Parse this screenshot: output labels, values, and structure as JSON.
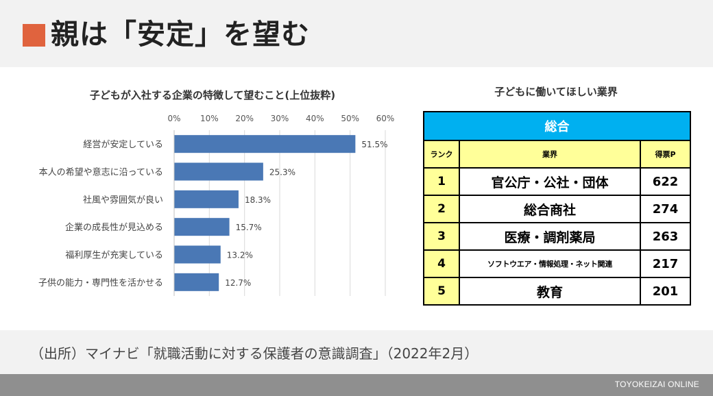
{
  "header": {
    "title": "親は「安定」を望む",
    "accent_color": "#e0633e"
  },
  "chart_data": {
    "type": "bar",
    "orientation": "horizontal",
    "title": "子どもが入社する企業の特徴して望むこと(上位抜粋)",
    "categories": [
      "経営が安定している",
      "本人の希望や意志に沿っている",
      "社風や雰囲気が良い",
      "企業の成長性が見込める",
      "福利厚生が充実している",
      "子供の能力・専門性を活かせる"
    ],
    "values": [
      51.5,
      25.3,
      18.3,
      15.7,
      13.2,
      12.7
    ],
    "data_labels": [
      "51.5%",
      "25.3%",
      "18.3%",
      "15.7%",
      "13.2%",
      "12.7%"
    ],
    "xlim": [
      0,
      60
    ],
    "ticks": [
      0,
      10,
      20,
      30,
      40,
      50,
      60
    ],
    "tick_labels": [
      "0%",
      "10%",
      "20%",
      "30%",
      "40%",
      "50%",
      "60%"
    ],
    "axis_position": "top",
    "grid": true,
    "bar_color": "#4a78b5"
  },
  "table": {
    "title": "子どもに働いてほしい業界",
    "banner": "総合",
    "headers": [
      "ランク",
      "業界",
      "得票P"
    ],
    "rows": [
      {
        "rank": "1",
        "industry": "官公庁・公社・団体",
        "points": "622"
      },
      {
        "rank": "2",
        "industry": "総合商社",
        "points": "274"
      },
      {
        "rank": "3",
        "industry": "医療・調剤薬局",
        "points": "263"
      },
      {
        "rank": "4",
        "industry": "ソフトウエア・情報処理・ネット関連",
        "points": "217"
      },
      {
        "rank": "5",
        "industry": "教育",
        "points": "201"
      }
    ],
    "banner_color": "#00b0f0",
    "header_color": "#ffff99"
  },
  "footer": {
    "source": "（出所）マイナビ「就職活動に対する保護者の意識調査」（2022年2月）"
  },
  "brand": "TOYOKEIZAI ONLINE"
}
